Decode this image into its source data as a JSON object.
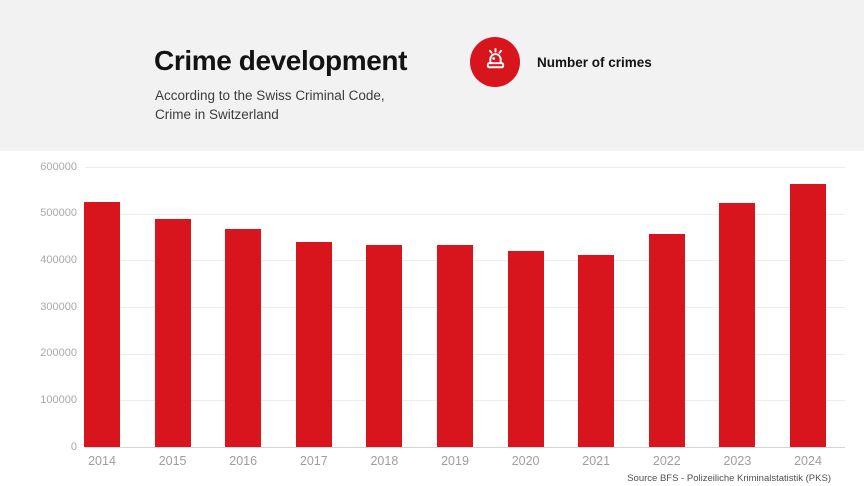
{
  "header": {
    "background": "#f2f2f2",
    "title": "Crime development",
    "subtitle_lines": [
      "According to the Swiss Criminal Code,",
      "Crime in Switzerland"
    ],
    "legend": {
      "icon": "siren-icon",
      "label": "Number of crimes",
      "badge_color": "#d8141c"
    }
  },
  "colors": {
    "accent_red": "#d8141c",
    "header_background": "#f2f2f2",
    "axis_text": "#a9a9a9",
    "x_axis_text": "#9e9e9e",
    "gridline": "#ededed",
    "baseline": "#d4d4d4",
    "title_text": "#131313",
    "subtitle_text": "#3c3c3c",
    "source_text": "#4f4f4f"
  },
  "chart_data": {
    "type": "bar",
    "title": "Crime development",
    "subtitle": "According to the Swiss Criminal Code, Crime in Switzerland",
    "series_name": "Number of crimes",
    "categories": [
      "2014",
      "2015",
      "2016",
      "2017",
      "2018",
      "2019",
      "2020",
      "2021",
      "2022",
      "2023",
      "2024"
    ],
    "values": [
      526000,
      488000,
      467000,
      439000,
      432000,
      433000,
      421000,
      412000,
      457000,
      522000,
      564000
    ],
    "xlabel": "",
    "ylabel": "",
    "ylim": [
      0,
      600000
    ],
    "yticks": [
      0,
      100000,
      200000,
      300000,
      400000,
      500000,
      600000
    ],
    "grid": true,
    "legend_position": "top",
    "bar_color": "#d8141c"
  },
  "footer": {
    "source": "Source BFS - Polizeiliche Kriminalstatistik (PKS)"
  }
}
